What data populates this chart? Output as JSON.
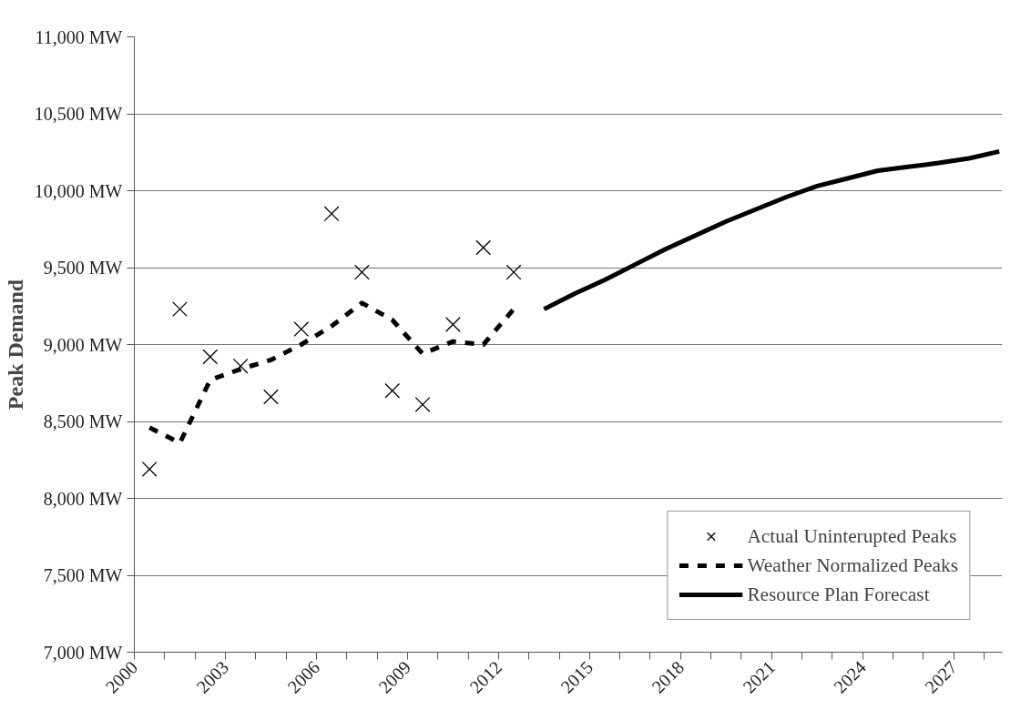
{
  "chart_data": {
    "type": "line",
    "ylabel": "Peak Demand",
    "xlim": [
      2000,
      2028.6
    ],
    "ylim": [
      7000,
      11000
    ],
    "xticks": [
      2000,
      {
        "value": 2001,
        "label": null
      },
      {
        "value": 2002,
        "label": null
      },
      2003,
      {
        "value": 2004,
        "label": null
      },
      {
        "value": 2005,
        "label": null
      },
      2006,
      {
        "value": 2007,
        "label": null
      },
      {
        "value": 2008,
        "label": null
      },
      2009,
      {
        "value": 2010,
        "label": null
      },
      {
        "value": 2011,
        "label": null
      },
      2012,
      {
        "value": 2013,
        "label": null
      },
      {
        "value": 2014,
        "label": null
      },
      2015,
      {
        "value": 2016,
        "label": null
      },
      {
        "value": 2017,
        "label": null
      },
      2018,
      {
        "value": 2019,
        "label": null
      },
      {
        "value": 2020,
        "label": null
      },
      2021,
      {
        "value": 2022,
        "label": null
      },
      {
        "value": 2023,
        "label": null
      },
      2024,
      {
        "value": 2025,
        "label": null
      },
      {
        "value": 2026,
        "label": null
      },
      2027,
      {
        "value": 2028,
        "label": null
      }
    ],
    "yticks": [
      {
        "value": 7000,
        "label": "7,000 MW"
      },
      {
        "value": 7500,
        "label": "7,500 MW"
      },
      {
        "value": 8000,
        "label": "8,000 MW"
      },
      {
        "value": 8500,
        "label": "8,500 MW"
      },
      {
        "value": 9000,
        "label": "9,000 MW"
      },
      {
        "value": 9500,
        "label": "9,500 MW"
      },
      {
        "value": 10000,
        "label": "10,000 MW"
      },
      {
        "value": 10500,
        "label": "10,500 MW"
      },
      {
        "value": 11000,
        "label": "11,000 MW"
      }
    ],
    "grid": "y",
    "legend": "bottom right",
    "series": [
      {
        "name": "Actual Uninterupted Peaks",
        "type": "scatter",
        "marker": "cross",
        "color": "#000000",
        "x": [
          2000.5,
          2001.5,
          2002.5,
          2003.5,
          2004.5,
          2005.5,
          2006.5,
          2007.5,
          2008.5,
          2009.5,
          2010.5,
          2011.5,
          2012.5
        ],
        "values": [
          8190,
          9230,
          8920,
          8860,
          8660,
          9100,
          9850,
          9470,
          8700,
          8610,
          9130,
          9630,
          9470
        ]
      },
      {
        "name": "Weather Normalized Peaks",
        "line_style": "dashed",
        "color": "#000000",
        "x": [
          2000.5,
          2001.5,
          2002.5,
          2003.5,
          2004.5,
          2005.5,
          2006.5,
          2007.5,
          2008.5,
          2009.5,
          2010.5,
          2011.5,
          2012.5
        ],
        "values": [
          8460,
          8360,
          8770,
          8840,
          8900,
          9000,
          9120,
          9270,
          9160,
          8940,
          9020,
          9000,
          9230
        ]
      },
      {
        "name": "Resource Plan Forecast",
        "line_style": "solid",
        "color": "#000000",
        "x": [
          2013.5,
          2014.5,
          2015.5,
          2016.5,
          2017.5,
          2018.5,
          2019.5,
          2020.5,
          2021.5,
          2022.5,
          2023.5,
          2024.5,
          2025.5,
          2026.5,
          2027.5,
          2028.5
        ],
        "values": [
          9230,
          9330,
          9420,
          9520,
          9620,
          9710,
          9800,
          9880,
          9960,
          10030,
          10080,
          10130,
          10155,
          10180,
          10210,
          10255
        ]
      }
    ]
  }
}
